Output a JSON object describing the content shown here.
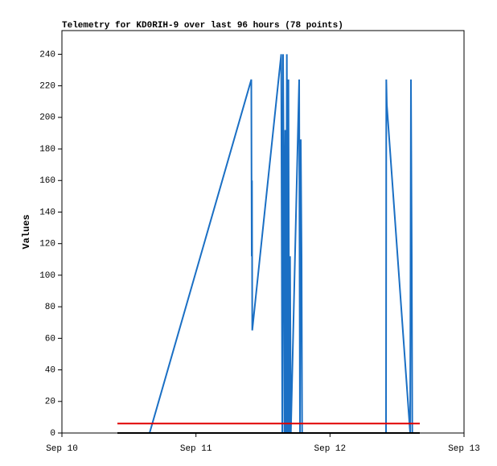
{
  "chart_data": {
    "type": "line",
    "title": "Telemetry for KD0RIH-9 over last 96 hours (78 points)",
    "y_label": "Values",
    "xlim": [
      0,
      3
    ],
    "xticks": [
      {
        "value": 0,
        "label": "Sep 10"
      },
      {
        "value": 1,
        "label": "Sep 11"
      },
      {
        "value": 2,
        "label": "Sep 12"
      },
      {
        "value": 3,
        "label": "Sep 13"
      }
    ],
    "ylim": [
      0,
      255
    ],
    "yticks": [
      0,
      20,
      40,
      60,
      80,
      100,
      120,
      140,
      160,
      180,
      200,
      220,
      240
    ],
    "series": [
      {
        "color": "#1a6fc4",
        "x": [
          0.654,
          1.413,
          1.416,
          1.418,
          1.42,
          1.636,
          1.64,
          1.644,
          1.65,
          1.655,
          1.66,
          1.666,
          1.672,
          1.678,
          1.684,
          1.69,
          1.696,
          1.702,
          1.708,
          1.77,
          1.776,
          1.782,
          1.788,
          1.792,
          2.418,
          2.42,
          2.424,
          2.598,
          2.604,
          2.61,
          2.614
        ],
        "values": [
          0,
          224,
          112,
          160,
          65,
          240,
          128,
          0,
          240,
          160,
          0,
          192,
          0,
          240,
          0,
          224,
          0,
          112,
          0,
          224,
          0,
          186,
          112,
          0,
          0,
          224,
          208,
          0,
          224,
          112,
          0
        ]
      },
      {
        "color": "#e00000",
        "x": [
          0.414,
          2.67
        ],
        "values": [
          6,
          6
        ]
      },
      {
        "color": "#000000",
        "x": [
          0.414,
          2.67
        ],
        "values": [
          0,
          0
        ]
      }
    ]
  }
}
